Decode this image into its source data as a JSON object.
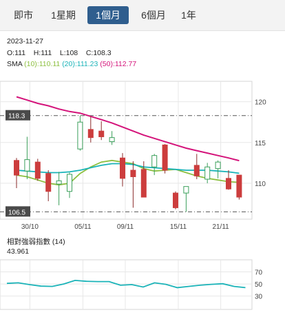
{
  "tabs": [
    {
      "label": "即市",
      "active": false
    },
    {
      "label": "1星期",
      "active": false
    },
    {
      "label": "1個月",
      "active": true
    },
    {
      "label": "6個月",
      "active": false
    },
    {
      "label": "1年",
      "active": false
    }
  ],
  "ohlc": {
    "date": "2023-11-27",
    "open_text": "O:111",
    "high_text": "H:111",
    "low_text": "L:108",
    "close_text": "C:108.3"
  },
  "sma_legend": {
    "label": "SMA",
    "items": [
      {
        "text": "(10):110.11",
        "color": "#8cbf3f"
      },
      {
        "text": "(20):111.23",
        "color": "#19b3b8"
      },
      {
        "text": "(50):112.77",
        "color": "#d4137a"
      }
    ]
  },
  "rsi_legend": {
    "label": "相對強弱指數 (14)",
    "value": "43.961"
  },
  "chart_data": [
    {
      "type": "candlestick",
      "title": "",
      "x_tick_labels": [
        "30/10",
        "05/11",
        "09/11",
        "15/11",
        "21/11"
      ],
      "x_tick_index": [
        1,
        6,
        10,
        15,
        19
      ],
      "y_ticks": [
        110,
        115,
        120
      ],
      "ylim": [
        105.6,
        122.5
      ],
      "grid": true,
      "reference_lines": [
        {
          "label": "118.3",
          "value": 118.3
        },
        {
          "label": "106.5",
          "value": 106.5
        }
      ],
      "candles": [
        {
          "o": 112.8,
          "h": 113.1,
          "l": 109.4,
          "c": 111.0
        },
        {
          "o": 111.5,
          "h": 115.7,
          "l": 110.5,
          "c": 112.9
        },
        {
          "o": 112.6,
          "h": 113.0,
          "l": 110.3,
          "c": 110.6
        },
        {
          "o": 111.2,
          "h": 111.6,
          "l": 107.8,
          "c": 109.0
        },
        {
          "o": 109.9,
          "h": 111.4,
          "l": 107.3,
          "c": 110.3
        },
        {
          "o": 109.0,
          "h": 111.3,
          "l": 108.2,
          "c": 111.1
        },
        {
          "o": 114.2,
          "h": 118.3,
          "l": 114.0,
          "c": 117.5
        },
        {
          "o": 116.6,
          "h": 118.2,
          "l": 115.0,
          "c": 115.6
        },
        {
          "o": 116.4,
          "h": 117.6,
          "l": 115.3,
          "c": 115.7
        },
        {
          "o": 115.1,
          "h": 116.4,
          "l": 114.7,
          "c": 115.6
        },
        {
          "o": 113.1,
          "h": 113.7,
          "l": 109.6,
          "c": 110.6
        },
        {
          "o": 111.6,
          "h": 112.7,
          "l": 107.0,
          "c": 110.8
        },
        {
          "o": 111.7,
          "h": 112.7,
          "l": 108.3,
          "c": 108.3
        },
        {
          "o": 112.0,
          "h": 113.6,
          "l": 111.0,
          "c": 113.4
        },
        {
          "o": 114.7,
          "h": 114.8,
          "l": 111.2,
          "c": 111.6
        },
        {
          "o": 108.8,
          "h": 109.0,
          "l": 106.8,
          "c": 107.0
        },
        {
          "o": 108.8,
          "h": 109.6,
          "l": 106.5,
          "c": 109.6
        },
        {
          "o": 112.2,
          "h": 113.6,
          "l": 110.5,
          "c": 110.9
        },
        {
          "o": 110.5,
          "h": 112.5,
          "l": 110.0,
          "c": 112.0
        },
        {
          "o": 111.8,
          "h": 112.8,
          "l": 110.6,
          "c": 112.6
        },
        {
          "o": 110.6,
          "h": 111.6,
          "l": 109.2,
          "c": 109.3
        },
        {
          "o": 111.0,
          "h": 111.0,
          "l": 108.0,
          "c": 108.3
        }
      ],
      "series": [
        {
          "name": "SMA (10)",
          "color": "#8cbf3f",
          "values": [
            111.0,
            110.8,
            110.4,
            110.0,
            109.8,
            110.0,
            111.2,
            112.0,
            112.6,
            112.8,
            112.6,
            112.4,
            111.8,
            111.5,
            111.6,
            111.7,
            111.3,
            110.9,
            110.6,
            110.4,
            110.2,
            110.11
          ]
        },
        {
          "name": "SMA (20)",
          "color": "#19b3b8",
          "values": [
            111.6,
            111.5,
            111.4,
            111.3,
            111.3,
            111.4,
            111.6,
            111.9,
            112.2,
            112.4,
            112.4,
            112.3,
            112.0,
            111.9,
            111.8,
            111.7,
            111.6,
            111.6,
            111.6,
            111.5,
            111.4,
            111.23
          ]
        },
        {
          "name": "SMA (50)",
          "color": "#d4137a",
          "values": [
            120.6,
            120.2,
            119.8,
            119.5,
            119.1,
            118.8,
            118.6,
            118.2,
            117.8,
            117.4,
            116.9,
            116.4,
            115.9,
            115.5,
            115.1,
            114.7,
            114.3,
            114.0,
            113.7,
            113.4,
            113.1,
            112.77
          ]
        }
      ]
    },
    {
      "type": "line",
      "title": "相對強弱指數 (14)",
      "y_ticks": [
        30,
        50,
        70
      ],
      "ylim": [
        8,
        90
      ],
      "grid": true,
      "series": [
        {
          "name": "RSI (14)",
          "color": "#19b3b8",
          "values": [
            51.0,
            52.0,
            49.0,
            46.5,
            46.0,
            50.0,
            56.0,
            54.5,
            54.0,
            54.0,
            48.0,
            49.0,
            45.0,
            52.0,
            49.5,
            44.0,
            46.0,
            48.0,
            49.5,
            50.5,
            46.0,
            43.961
          ]
        }
      ]
    }
  ]
}
